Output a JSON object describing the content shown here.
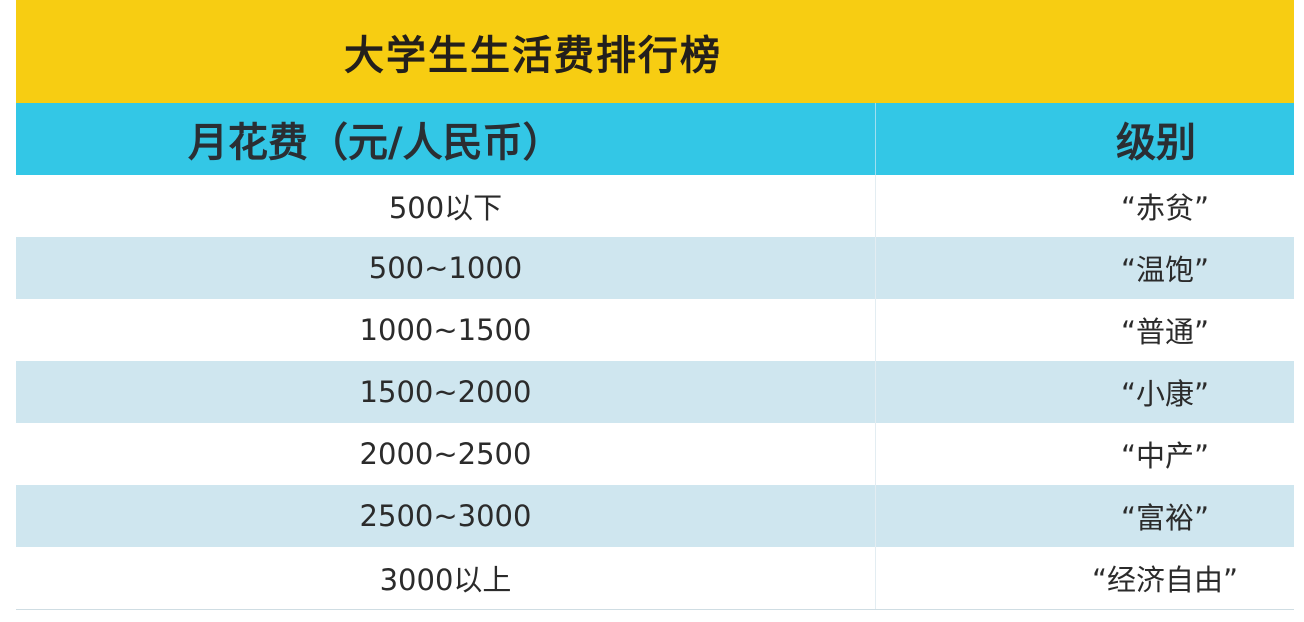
{
  "title": "大学生生活费排行榜",
  "header": {
    "monthly_cost": "月花费（元/人民币）",
    "level": "级别"
  },
  "rows": [
    {
      "range": "500以下",
      "level": "“赤贫”"
    },
    {
      "range": "500~1000",
      "level": "“温饱”"
    },
    {
      "range": "1000~1500",
      "level": "“普通”"
    },
    {
      "range": "1500~2000",
      "level": "“小康”"
    },
    {
      "range": "2000~2500",
      "level": "“中产”"
    },
    {
      "range": "2500~3000",
      "level": "“富裕”"
    },
    {
      "range": "3000以上",
      "level": "“经济自由”"
    }
  ],
  "colors": {
    "title_bg": "#f7cd12",
    "header_bg": "#33c7e6",
    "alt_row_bg": "#cfe6ef"
  }
}
